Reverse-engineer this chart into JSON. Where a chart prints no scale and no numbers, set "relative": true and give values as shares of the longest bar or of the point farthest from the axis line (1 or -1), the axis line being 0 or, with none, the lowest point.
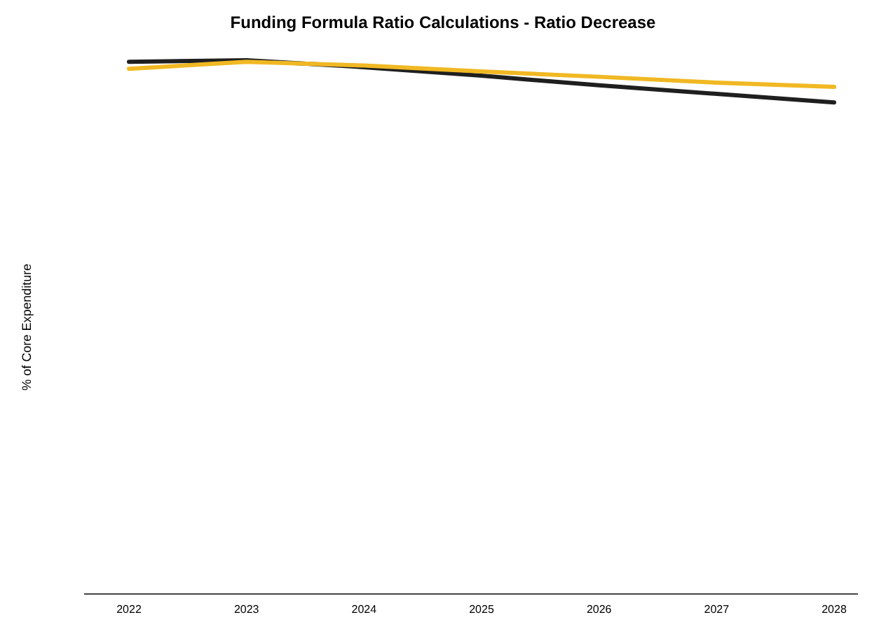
{
  "chart_data": {
    "type": "line",
    "title": "Funding Formula Ratio Calculations - Ratio Decrease",
    "ylabel": "% of Core Expenditure",
    "relative": true,
    "categories": [
      "2022",
      "2023",
      "2024",
      "2025",
      "2026",
      "2027",
      "2028"
    ],
    "series": [
      {
        "color": "#1f1f1f",
        "values": [
          0.997,
          1,
          0.987,
          0.971,
          0.953,
          0.937,
          0.921
        ]
      },
      {
        "color": "#f0b823",
        "values": [
          0.984,
          0.997,
          0.99,
          0.979,
          0.969,
          0.958,
          0.95
        ]
      }
    ]
  }
}
